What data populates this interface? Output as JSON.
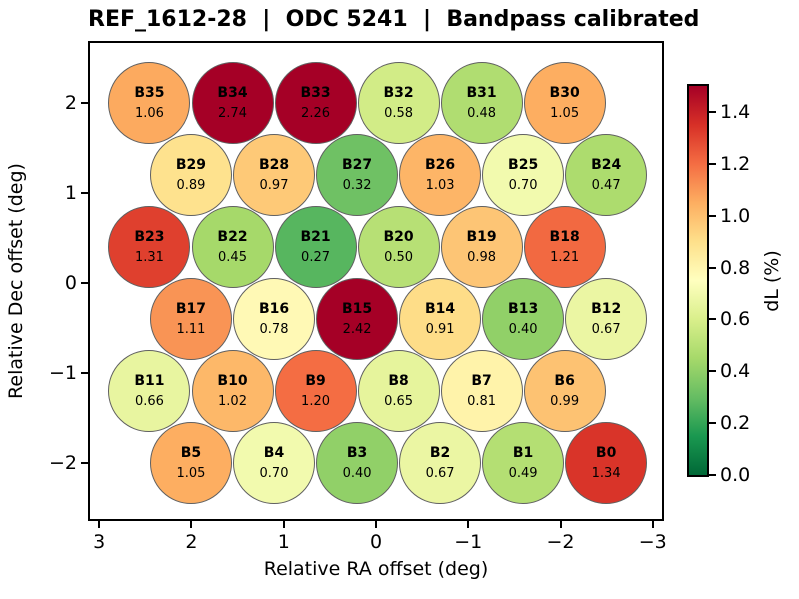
{
  "title": "REF_1612-28  |  ODC 5241  |  Bandpass calibrated",
  "chart_data": {
    "type": "scatter",
    "title": "REF_1612-28  |  ODC 5241  |  Bandpass calibrated",
    "xlabel": "Relative RA offset (deg)",
    "ylabel": "Relative Dec offset (deg)",
    "xlim": [
      3.1,
      -3.1
    ],
    "ylim": [
      -2.62,
      2.67
    ],
    "x_axis_inverted": true,
    "grid": false,
    "x_ticks": [
      {
        "value": 3,
        "label": "3"
      },
      {
        "value": 2,
        "label": "2"
      },
      {
        "value": 1,
        "label": "1"
      },
      {
        "value": 0,
        "label": "0"
      },
      {
        "value": -1,
        "label": "−1"
      },
      {
        "value": -2,
        "label": "−2"
      },
      {
        "value": -3,
        "label": "−3"
      }
    ],
    "y_ticks": [
      {
        "value": 2,
        "label": "2"
      },
      {
        "value": 1,
        "label": "1"
      },
      {
        "value": 0,
        "label": "0"
      },
      {
        "value": -1,
        "label": "−1"
      },
      {
        "value": -2,
        "label": "−2"
      }
    ],
    "marker_radius_px": 40,
    "marker_edge_color": "#606060",
    "colorbar": {
      "label": "dL (%)",
      "vmin": 0.0,
      "vmax": 1.5,
      "colormap": "RdYlGn_r",
      "ticks": [
        {
          "value": 0.0,
          "label": "0.0"
        },
        {
          "value": 0.2,
          "label": "0.2"
        },
        {
          "value": 0.4,
          "label": "0.4"
        },
        {
          "value": 0.6,
          "label": "0.6"
        },
        {
          "value": 0.8,
          "label": "0.8"
        },
        {
          "value": 1.0,
          "label": "1.0"
        },
        {
          "value": 1.2,
          "label": "1.2"
        },
        {
          "value": 1.4,
          "label": "1.4"
        }
      ],
      "stops": [
        "#006837",
        "#1a9850",
        "#66bd63",
        "#a6d96a",
        "#d9ef8b",
        "#ffffbf",
        "#fee08b",
        "#fdae61",
        "#f46d43",
        "#d73027",
        "#a50026"
      ]
    },
    "beams": [
      {
        "label": "B35",
        "value": 1.06,
        "ra": 2.45,
        "dec": 2.0
      },
      {
        "label": "B34",
        "value": 2.74,
        "ra": 1.55,
        "dec": 2.0
      },
      {
        "label": "B33",
        "value": 2.26,
        "ra": 0.65,
        "dec": 2.0
      },
      {
        "label": "B32",
        "value": 0.58,
        "ra": -0.25,
        "dec": 2.0
      },
      {
        "label": "B31",
        "value": 0.48,
        "ra": -1.15,
        "dec": 2.0
      },
      {
        "label": "B30",
        "value": 1.05,
        "ra": -2.05,
        "dec": 2.0
      },
      {
        "label": "B29",
        "value": 0.89,
        "ra": 2.0,
        "dec": 1.2
      },
      {
        "label": "B28",
        "value": 0.97,
        "ra": 1.1,
        "dec": 1.2
      },
      {
        "label": "B27",
        "value": 0.32,
        "ra": 0.2,
        "dec": 1.2
      },
      {
        "label": "B26",
        "value": 1.03,
        "ra": -0.7,
        "dec": 1.2
      },
      {
        "label": "B25",
        "value": 0.7,
        "ra": -1.6,
        "dec": 1.2
      },
      {
        "label": "B24",
        "value": 0.47,
        "ra": -2.5,
        "dec": 1.2
      },
      {
        "label": "B23",
        "value": 1.31,
        "ra": 2.45,
        "dec": 0.4
      },
      {
        "label": "B22",
        "value": 0.45,
        "ra": 1.55,
        "dec": 0.4
      },
      {
        "label": "B21",
        "value": 0.27,
        "ra": 0.65,
        "dec": 0.4
      },
      {
        "label": "B20",
        "value": 0.5,
        "ra": -0.25,
        "dec": 0.4
      },
      {
        "label": "B19",
        "value": 0.98,
        "ra": -1.15,
        "dec": 0.4
      },
      {
        "label": "B18",
        "value": 1.21,
        "ra": -2.05,
        "dec": 0.4
      },
      {
        "label": "B17",
        "value": 1.11,
        "ra": 2.0,
        "dec": -0.4
      },
      {
        "label": "B16",
        "value": 0.78,
        "ra": 1.1,
        "dec": -0.4
      },
      {
        "label": "B15",
        "value": 2.42,
        "ra": 0.2,
        "dec": -0.4
      },
      {
        "label": "B14",
        "value": 0.91,
        "ra": -0.7,
        "dec": -0.4
      },
      {
        "label": "B13",
        "value": 0.4,
        "ra": -1.6,
        "dec": -0.4
      },
      {
        "label": "B12",
        "value": 0.67,
        "ra": -2.5,
        "dec": -0.4
      },
      {
        "label": "B11",
        "value": 0.66,
        "ra": 2.45,
        "dec": -1.2
      },
      {
        "label": "B10",
        "value": 1.02,
        "ra": 1.55,
        "dec": -1.2
      },
      {
        "label": "B9",
        "value": 1.2,
        "ra": 0.65,
        "dec": -1.2
      },
      {
        "label": "B8",
        "value": 0.65,
        "ra": -0.25,
        "dec": -1.2
      },
      {
        "label": "B7",
        "value": 0.81,
        "ra": -1.15,
        "dec": -1.2
      },
      {
        "label": "B6",
        "value": 0.99,
        "ra": -2.05,
        "dec": -1.2
      },
      {
        "label": "B5",
        "value": 1.05,
        "ra": 2.0,
        "dec": -2.0
      },
      {
        "label": "B4",
        "value": 0.7,
        "ra": 1.1,
        "dec": -2.0
      },
      {
        "label": "B3",
        "value": 0.4,
        "ra": 0.2,
        "dec": -2.0
      },
      {
        "label": "B2",
        "value": 0.67,
        "ra": -0.7,
        "dec": -2.0
      },
      {
        "label": "B1",
        "value": 0.49,
        "ra": -1.6,
        "dec": -2.0
      },
      {
        "label": "B0",
        "value": 1.34,
        "ra": -2.5,
        "dec": -2.0
      }
    ]
  }
}
